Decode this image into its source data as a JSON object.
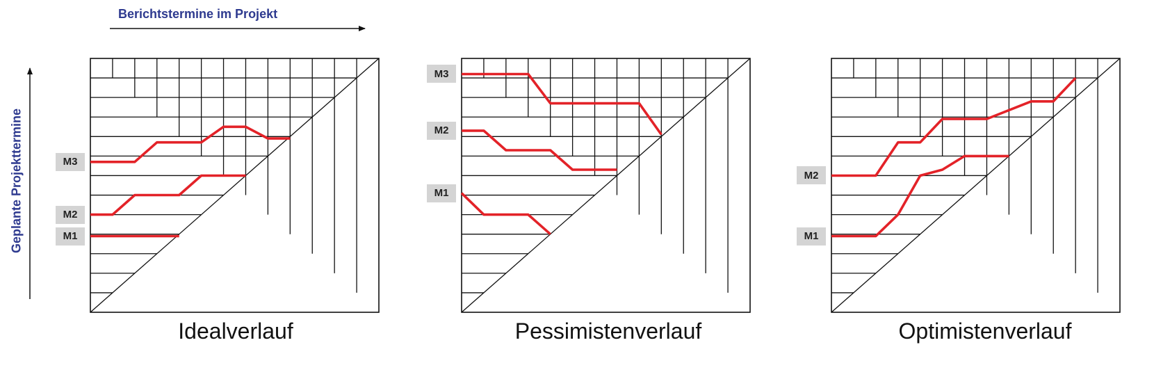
{
  "axes": {
    "x_label": "Berichtstermine im Projekt",
    "y_label": "Geplante Projekttermine"
  },
  "colors": {
    "milestone_line": "#e32228",
    "axis_text": "#2e3a8f",
    "label_box": "#d4d4d4"
  },
  "panels": [
    {
      "title": "Idealverlauf",
      "milestones": [
        {
          "label": "M3",
          "points": [
            [
              0,
              7.7
            ],
            [
              2,
              7.7
            ],
            [
              3,
              8.7
            ],
            [
              5,
              8.7
            ],
            [
              6,
              9.5
            ],
            [
              7,
              9.5
            ],
            [
              8,
              8.9
            ],
            [
              9,
              8.9
            ]
          ]
        },
        {
          "label": "M2",
          "points": [
            [
              0,
              5
            ],
            [
              1,
              5
            ],
            [
              2,
              6
            ],
            [
              4,
              6
            ],
            [
              5,
              7
            ],
            [
              7,
              7
            ]
          ]
        },
        {
          "label": "M1",
          "points": [
            [
              0,
              3.9
            ],
            [
              4,
              3.9
            ]
          ]
        }
      ]
    },
    {
      "title": "Pessimistenverlauf",
      "milestones": [
        {
          "label": "M3",
          "points": [
            [
              0,
              12.2
            ],
            [
              3,
              12.2
            ],
            [
              4,
              10.7
            ],
            [
              8,
              10.7
            ],
            [
              9,
              9.1
            ]
          ]
        },
        {
          "label": "M2",
          "points": [
            [
              0,
              9.3
            ],
            [
              1,
              9.3
            ],
            [
              2,
              8.3
            ],
            [
              4,
              8.3
            ],
            [
              5,
              7.3
            ],
            [
              7,
              7.3
            ]
          ]
        },
        {
          "label": "M1",
          "points": [
            [
              0,
              6.1
            ],
            [
              1,
              5
            ],
            [
              3,
              5
            ],
            [
              4,
              4
            ]
          ]
        }
      ]
    },
    {
      "title": "Optimistenverlauf",
      "milestones": [
        {
          "label": "M2",
          "points": [
            [
              0,
              7
            ],
            [
              2,
              7
            ],
            [
              3,
              8.7
            ],
            [
              4,
              8.7
            ],
            [
              5,
              9.9
            ],
            [
              7,
              9.9
            ],
            [
              9,
              10.8
            ],
            [
              10,
              10.8
            ],
            [
              11,
              12
            ]
          ]
        },
        {
          "label": "M1",
          "points": [
            [
              0,
              3.9
            ],
            [
              2,
              3.9
            ],
            [
              3,
              5
            ],
            [
              4,
              7
            ],
            [
              5,
              7.3
            ],
            [
              6,
              8
            ],
            [
              8,
              8
            ]
          ]
        }
      ]
    }
  ]
}
